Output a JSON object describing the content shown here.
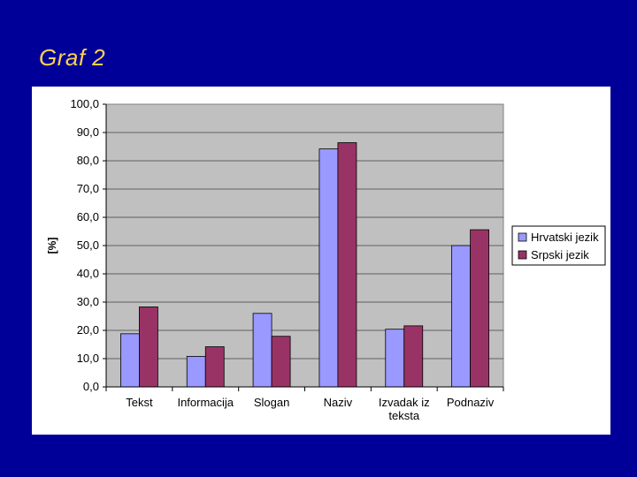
{
  "slide": {
    "title": "Graf 2"
  },
  "chart_data": {
    "type": "bar",
    "categories": [
      [
        "Tekst"
      ],
      [
        "Informacija"
      ],
      [
        "Slogan"
      ],
      [
        "Naziv"
      ],
      [
        "Izvadak iz",
        "teksta"
      ],
      [
        "Podnaziv"
      ]
    ],
    "series": [
      {
        "name": "Hrvatski jezik",
        "color": "#9999ff",
        "values": [
          18.8,
          10.8,
          26.0,
          84.2,
          20.4,
          50.0
        ]
      },
      {
        "name": "Srpski jezik",
        "color": "#993366",
        "values": [
          28.3,
          14.2,
          17.9,
          86.4,
          21.6,
          55.6
        ]
      }
    ],
    "ylabel": "[%]",
    "ylim": [
      0,
      100
    ],
    "yticks": [
      "0,0",
      "10,0",
      "20,0",
      "30,0",
      "40,0",
      "50,0",
      "60,0",
      "70,0",
      "80,0",
      "90,0",
      "100,0"
    ],
    "ytick_values": [
      0,
      10,
      20,
      30,
      40,
      50,
      60,
      70,
      80,
      90,
      100
    ],
    "grid": true,
    "plot_background": "#c0c0c0",
    "legend": "right"
  }
}
